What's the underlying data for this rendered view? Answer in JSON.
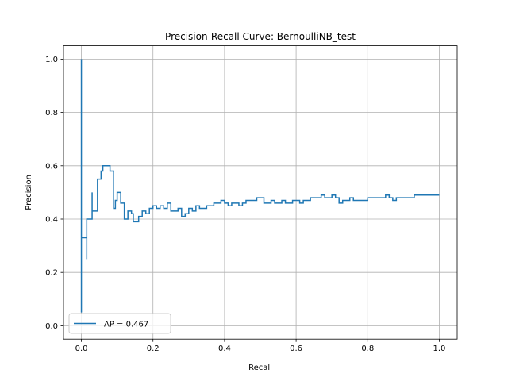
{
  "chart_data": {
    "type": "line",
    "title": "Precision-Recall Curve: BernoulliNB_test",
    "xlabel": "Recall",
    "ylabel": "Precision",
    "xlim": [
      -0.05,
      1.05
    ],
    "ylim": [
      -0.05,
      1.05
    ],
    "xticks": [
      0.0,
      0.2,
      0.4,
      0.6,
      0.8,
      1.0
    ],
    "yticks": [
      0.0,
      0.2,
      0.4,
      0.6,
      0.8,
      1.0
    ],
    "xtick_labels": [
      "0.0",
      "0.2",
      "0.4",
      "0.6",
      "0.8",
      "1.0"
    ],
    "ytick_labels": [
      "0.0",
      "0.2",
      "0.4",
      "0.6",
      "0.8",
      "1.0"
    ],
    "grid": true,
    "legend_position": "lower-left",
    "series": [
      {
        "name": "AP = 0.467",
        "color": "#1f77b4",
        "drawstyle": "steps-post",
        "recall": [
          0.0,
          0.0,
          0.0,
          0.015,
          0.015,
          0.03,
          0.03,
          0.045,
          0.045,
          0.055,
          0.06,
          0.07,
          0.08,
          0.09,
          0.095,
          0.1,
          0.11,
          0.12,
          0.13,
          0.14,
          0.145,
          0.16,
          0.17,
          0.18,
          0.19,
          0.2,
          0.21,
          0.22,
          0.23,
          0.24,
          0.25,
          0.26,
          0.27,
          0.28,
          0.29,
          0.3,
          0.31,
          0.32,
          0.33,
          0.34,
          0.35,
          0.36,
          0.37,
          0.38,
          0.39,
          0.4,
          0.41,
          0.42,
          0.43,
          0.44,
          0.45,
          0.46,
          0.47,
          0.48,
          0.49,
          0.5,
          0.51,
          0.52,
          0.53,
          0.54,
          0.55,
          0.56,
          0.57,
          0.58,
          0.59,
          0.6,
          0.61,
          0.62,
          0.63,
          0.64,
          0.65,
          0.66,
          0.67,
          0.68,
          0.69,
          0.7,
          0.71,
          0.72,
          0.73,
          0.74,
          0.75,
          0.76,
          0.77,
          0.78,
          0.79,
          0.8,
          0.81,
          0.82,
          0.83,
          0.84,
          0.85,
          0.86,
          0.87,
          0.88,
          0.89,
          0.9,
          0.91,
          0.92,
          0.93,
          0.94,
          0.95,
          0.96,
          0.97,
          0.98,
          0.99,
          1.0
        ],
        "precision": [
          0.05,
          1.0,
          0.33,
          0.25,
          0.4,
          0.5,
          0.43,
          0.5,
          0.55,
          0.58,
          0.6,
          0.6,
          0.58,
          0.44,
          0.47,
          0.5,
          0.46,
          0.4,
          0.43,
          0.42,
          0.39,
          0.41,
          0.43,
          0.42,
          0.44,
          0.45,
          0.44,
          0.45,
          0.44,
          0.46,
          0.43,
          0.43,
          0.44,
          0.41,
          0.42,
          0.44,
          0.43,
          0.45,
          0.44,
          0.44,
          0.45,
          0.45,
          0.46,
          0.46,
          0.47,
          0.46,
          0.45,
          0.46,
          0.46,
          0.45,
          0.46,
          0.47,
          0.47,
          0.47,
          0.48,
          0.48,
          0.46,
          0.46,
          0.47,
          0.46,
          0.46,
          0.47,
          0.46,
          0.46,
          0.47,
          0.47,
          0.46,
          0.47,
          0.47,
          0.48,
          0.48,
          0.48,
          0.49,
          0.48,
          0.48,
          0.49,
          0.48,
          0.46,
          0.47,
          0.47,
          0.48,
          0.47,
          0.47,
          0.47,
          0.47,
          0.48,
          0.48,
          0.48,
          0.48,
          0.48,
          0.49,
          0.48,
          0.47,
          0.48,
          0.48,
          0.48,
          0.48,
          0.48,
          0.49,
          0.49,
          0.49,
          0.49,
          0.49,
          0.49,
          0.49,
          0.49
        ]
      }
    ]
  }
}
